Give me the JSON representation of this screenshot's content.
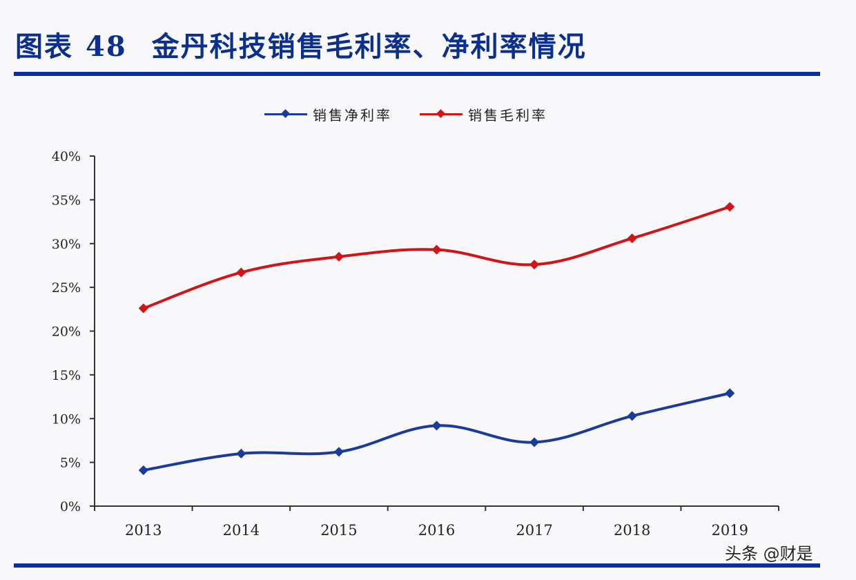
{
  "header": {
    "prefix": "图表",
    "number": "48",
    "title": "金丹科技销售毛利率、净利率情况"
  },
  "watermark": "头条 @财是",
  "colors": {
    "net_margin": "#1a3a9c",
    "gross_margin": "#d01418",
    "rule": "#0b2f96",
    "title": "#0a2f8c"
  },
  "legend": {
    "items": [
      {
        "label": "销售净利率",
        "color": "#1a3a9c"
      },
      {
        "label": "销售毛利率",
        "color": "#d01418"
      }
    ]
  },
  "chart_data": {
    "type": "line",
    "title": "金丹科技销售毛利率、净利率情况",
    "categories": [
      "2013",
      "2014",
      "2015",
      "2016",
      "2017",
      "2018",
      "2019"
    ],
    "series": [
      {
        "name": "销售净利率",
        "color": "#1a3a9c",
        "values": [
          4.1,
          6.0,
          6.2,
          9.2,
          7.3,
          10.3,
          12.9
        ]
      },
      {
        "name": "销售毛利率",
        "color": "#d01418",
        "values": [
          22.6,
          26.7,
          28.5,
          29.3,
          27.6,
          30.6,
          34.2
        ]
      }
    ],
    "xlabel": "",
    "ylabel": "",
    "ylim": [
      0,
      40
    ],
    "yticks": [
      "0%",
      "5%",
      "10%",
      "15%",
      "20%",
      "25%",
      "30%",
      "35%",
      "40%"
    ],
    "grid": false,
    "legend_position": "top",
    "smooth": true,
    "marker": "diamond"
  }
}
